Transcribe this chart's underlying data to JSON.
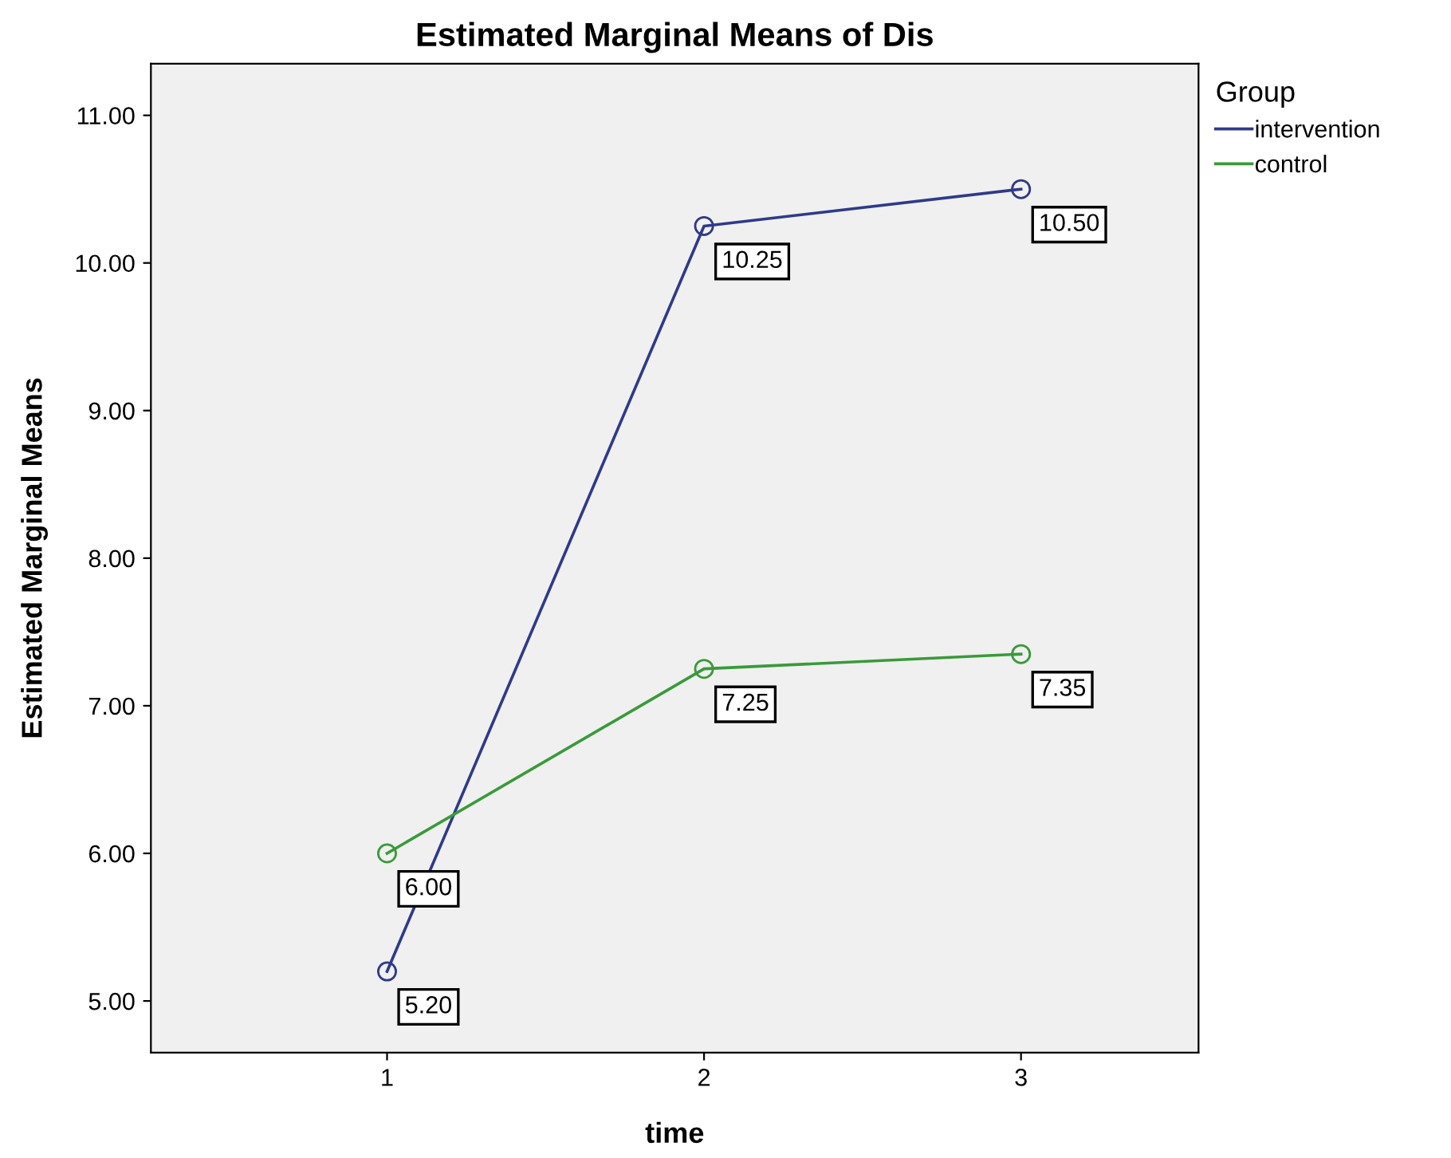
{
  "chart_data": {
    "type": "line",
    "title": "Estimated Marginal Means of Dis",
    "xlabel": "time",
    "ylabel": "Estimated Marginal Means",
    "legend_title": "Group",
    "categories": [
      "1",
      "2",
      "3"
    ],
    "series": [
      {
        "name": "intervention",
        "color": "#2f3a8a",
        "values": [
          5.2,
          10.25,
          10.5
        ],
        "value_labels": [
          "5.20",
          "10.25",
          "10.50"
        ]
      },
      {
        "name": "control",
        "color": "#3a9a3a",
        "values": [
          6.0,
          7.25,
          7.35
        ],
        "value_labels": [
          "6.00",
          "7.25",
          "7.35"
        ]
      }
    ],
    "ylim": [
      4.65,
      11.35
    ],
    "yticks": [
      {
        "value": 5,
        "label": "5.00"
      },
      {
        "value": 6,
        "label": "6.00"
      },
      {
        "value": 7,
        "label": "7.00"
      },
      {
        "value": 8,
        "label": "8.00"
      },
      {
        "value": 9,
        "label": "9.00"
      },
      {
        "value": 10,
        "label": "10.00"
      },
      {
        "value": 11,
        "label": "11.00"
      }
    ],
    "marker": "circle",
    "line_style": "solid",
    "grid": false,
    "legend": "top right"
  }
}
